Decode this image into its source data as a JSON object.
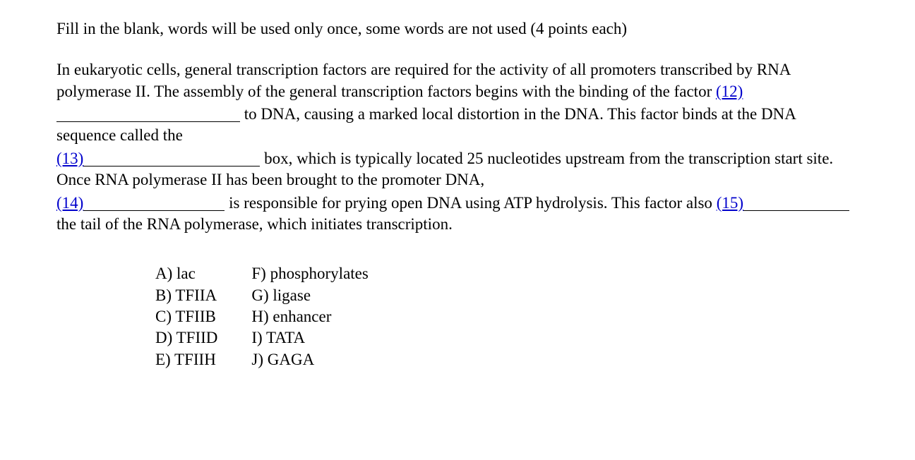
{
  "instructions": "Fill in the blank, words will be used only once, some words are not used (4 points each)",
  "passage": {
    "p1a": "In eukaryotic cells, general transcription factors are required for the activity of all promoters transcribed by RNA polymerase II. The assembly of the general transcription factors begins with the binding of the factor ",
    "b12": "(12)",
    "p1b": " to DNA, causing a marked local distortion in the DNA. This factor binds at the DNA sequence called the",
    "b13": "(13)",
    "p2a": " box, which is typically located 25 nucleotides upstream from the transcription start site. Once RNA polymerase II has been brought to the promoter DNA, ",
    "b14": "(14)",
    "p3a": " is responsible for prying open DNA using ATP hydrolysis. This factor also ",
    "b15": "(15)",
    "p4a": " the tail of the RNA polymerase, which initiates transcription."
  },
  "blank_widths": {
    "w12": 260,
    "w13": 250,
    "w14": 200,
    "w15": 150
  },
  "options": {
    "col1": [
      "A) lac",
      "B) TFIIA",
      "C) TFIIB",
      "D) TFIID",
      "E) TFIIH"
    ],
    "col2": [
      "F) phosphorylates",
      "G) ligase",
      "H) enhancer",
      "I) TATA",
      "J) GAGA"
    ]
  },
  "style": {
    "background_color": "#ffffff",
    "text_color": "#000000",
    "link_color": "#0000cc",
    "font_family": "Times New Roman",
    "font_size_pt": 17
  }
}
